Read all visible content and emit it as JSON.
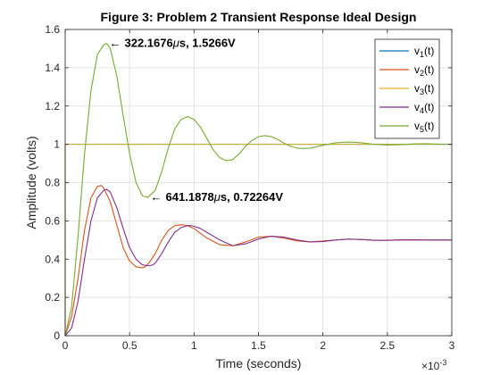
{
  "chart_data": {
    "type": "line",
    "title": "Figure 3: Problem 2 Transient Response Ideal Design",
    "xlabel": "Time (seconds)",
    "ylabel": "Amplitude (volts)",
    "x_multiplier_label": "×10",
    "x_multiplier_exponent": "-3",
    "xlim": [
      0,
      0.003
    ],
    "ylim": [
      0,
      1.6
    ],
    "x_ticks": [
      0,
      0.0005,
      0.001,
      0.0015,
      0.002,
      0.0025,
      0.003
    ],
    "x_tick_labels": [
      "0",
      "0.5",
      "1",
      "1.5",
      "2",
      "2.5",
      "3"
    ],
    "y_ticks": [
      0,
      0.2,
      0.4,
      0.6,
      0.8,
      1,
      1.2,
      1.4,
      1.6
    ],
    "y_tick_labels": [
      "0",
      "0.2",
      "0.4",
      "0.6",
      "0.8",
      "1",
      "1.2",
      "1.4",
      "1.6"
    ],
    "grid": true,
    "legend_position": "top-right",
    "series": [
      {
        "name": "v",
        "subscript": "1",
        "suffix": "(t)",
        "color": "#0072BD",
        "x": [
          0,
          1e-07,
          0.003
        ],
        "y": [
          0,
          1,
          1
        ]
      },
      {
        "name": "v",
        "subscript": "2",
        "suffix": "(t)",
        "color": "#D95319",
        "x": [
          0,
          5e-05,
          0.0001,
          0.00015,
          0.0002,
          0.00025,
          0.00028,
          0.0003,
          0.00035,
          0.0004,
          0.00045,
          0.0005,
          0.00055,
          0.0006,
          0.00062,
          0.00065,
          0.0007,
          0.00075,
          0.0008,
          0.00085,
          0.0009,
          0.00095,
          0.001,
          0.00105,
          0.0011,
          0.0012,
          0.0013,
          0.0014,
          0.0015,
          0.0016,
          0.0017,
          0.0018,
          0.0019,
          0.002,
          0.0021,
          0.0022,
          0.0023,
          0.0024,
          0.0025,
          0.0026,
          0.0027,
          0.0028,
          0.0029,
          0.003
        ],
        "y": [
          0,
          0.1,
          0.3,
          0.55,
          0.72,
          0.78,
          0.785,
          0.77,
          0.7,
          0.58,
          0.46,
          0.39,
          0.36,
          0.355,
          0.36,
          0.38,
          0.43,
          0.5,
          0.55,
          0.575,
          0.58,
          0.575,
          0.56,
          0.535,
          0.51,
          0.475,
          0.47,
          0.49,
          0.515,
          0.52,
          0.51,
          0.495,
          0.49,
          0.495,
          0.5,
          0.505,
          0.502,
          0.498,
          0.499,
          0.501,
          0.5,
          0.5,
          0.5,
          0.5
        ]
      },
      {
        "name": "v",
        "subscript": "3",
        "suffix": "(t)",
        "color": "#EDB120",
        "x": [
          0,
          1e-07,
          0.003
        ],
        "y": [
          0,
          1,
          1
        ]
      },
      {
        "name": "v",
        "subscript": "4",
        "suffix": "(t)",
        "color": "#7E2F8E",
        "x": [
          0,
          5e-05,
          0.0001,
          0.00015,
          0.0002,
          0.00025,
          0.0003,
          0.00032,
          0.00035,
          0.0004,
          0.00045,
          0.0005,
          0.00055,
          0.0006,
          0.00065,
          0.00068,
          0.0007,
          0.00075,
          0.0008,
          0.00085,
          0.0009,
          0.00095,
          0.00098,
          0.001,
          0.00105,
          0.0011,
          0.0012,
          0.0013,
          0.0014,
          0.0015,
          0.0016,
          0.0017,
          0.0018,
          0.0019,
          0.002,
          0.0021,
          0.0022,
          0.0023,
          0.0024,
          0.0025,
          0.0026,
          0.0027,
          0.0028,
          0.0029,
          0.003
        ],
        "y": [
          0,
          0.04,
          0.18,
          0.4,
          0.6,
          0.72,
          0.76,
          0.765,
          0.75,
          0.67,
          0.56,
          0.46,
          0.4,
          0.37,
          0.365,
          0.37,
          0.38,
          0.43,
          0.49,
          0.54,
          0.565,
          0.575,
          0.575,
          0.572,
          0.56,
          0.54,
          0.5,
          0.47,
          0.48,
          0.505,
          0.52,
          0.515,
          0.5,
          0.49,
          0.492,
          0.5,
          0.505,
          0.503,
          0.499,
          0.498,
          0.5,
          0.501,
          0.5,
          0.5,
          0.5
        ]
      },
      {
        "name": "v",
        "subscript": "5",
        "suffix": "(t)",
        "color": "#77AC30",
        "x": [
          0,
          5e-05,
          0.0001,
          0.00015,
          0.0002,
          0.00025,
          0.0003,
          0.00032217,
          0.00035,
          0.0004,
          0.00045,
          0.0005,
          0.00055,
          0.0006,
          0.00064119,
          0.0007,
          0.00075,
          0.0008,
          0.00085,
          0.0009,
          0.00095,
          0.001,
          0.00105,
          0.0011,
          0.00115,
          0.0012,
          0.00125,
          0.0013,
          0.00135,
          0.0014,
          0.00145,
          0.0015,
          0.00155,
          0.0016,
          0.00165,
          0.0017,
          0.00175,
          0.0018,
          0.00185,
          0.0019,
          0.002,
          0.0021,
          0.0022,
          0.0023,
          0.0024,
          0.0025,
          0.0026,
          0.0027,
          0.0028,
          0.0029,
          0.003
        ],
        "y": [
          0,
          0.15,
          0.52,
          0.95,
          1.28,
          1.47,
          1.52,
          1.5266,
          1.5,
          1.36,
          1.15,
          0.95,
          0.8,
          0.73,
          0.72264,
          0.76,
          0.86,
          0.98,
          1.08,
          1.13,
          1.145,
          1.13,
          1.09,
          1.03,
          0.97,
          0.93,
          0.915,
          0.92,
          0.95,
          0.99,
          1.02,
          1.04,
          1.045,
          1.04,
          1.025,
          1.005,
          0.99,
          0.98,
          0.978,
          0.98,
          0.995,
          1.008,
          1.012,
          1.008,
          1.0,
          0.996,
          0.998,
          1.002,
          1.003,
          1.001,
          1.0
        ]
      }
    ],
    "annotations": [
      {
        "x": 0.00032217,
        "y": 1.5266,
        "arrow": "←",
        "text": "322.1676",
        "unit": "s, 1.5266V",
        "mu": "μ"
      },
      {
        "x": 0.00064119,
        "y": 0.72264,
        "arrow": "←",
        "text": "641.1878",
        "unit": "s, 0.72264V",
        "mu": "μ"
      }
    ]
  }
}
